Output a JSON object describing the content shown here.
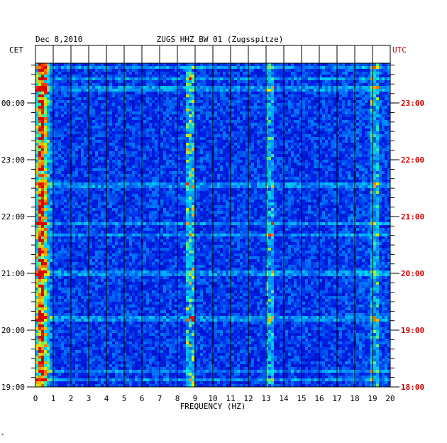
{
  "chart_data": {
    "type": "heatmap",
    "date": "Dec 8,2010",
    "title": "ZUGS HHZ BW 01 (Zugsspitze)",
    "left_axis_label": "CET",
    "right_axis_label": "UTC",
    "xlabel": "FREQUENCY (HZ)",
    "xlim": [
      0,
      20
    ],
    "x_ticks": [
      "0",
      "1",
      "2",
      "3",
      "4",
      "5",
      "6",
      "7",
      "8",
      "9",
      "10",
      "11",
      "12",
      "13",
      "14",
      "15",
      "16",
      "17",
      "18",
      "19",
      "20"
    ],
    "y_ticks_cet": [
      "00:00",
      "23:00",
      "22:00",
      "21:00",
      "20:00",
      "19:00"
    ],
    "y_ticks_utc": [
      "23:00",
      "22:00",
      "21:00",
      "20:00",
      "19:00",
      "18:00"
    ],
    "colors": {
      "background_low": "#0000c8",
      "mid": "#00c8ff",
      "high": "#ffff00",
      "peak": "#ff0000",
      "utc_label": "#cc0000",
      "grid": "#000000"
    },
    "notable_features": [
      {
        "frequency_hz": 0.3,
        "description": "strong persistent low-frequency energy (red/yellow)"
      },
      {
        "frequency_hz": 8.7,
        "description": "narrow persistent spectral line"
      },
      {
        "frequency_hz": 13.2,
        "description": "intermittent spectral line"
      },
      {
        "frequency_hz": 19.1,
        "description": "weak spectral line"
      }
    ]
  }
}
